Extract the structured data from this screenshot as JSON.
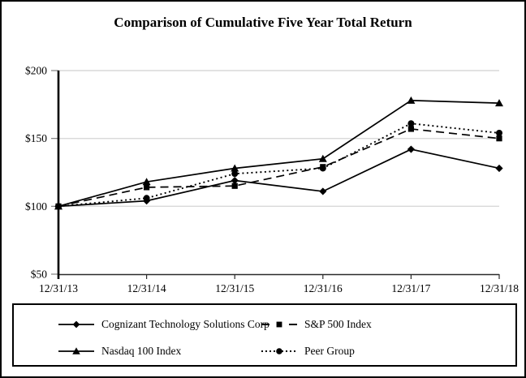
{
  "chart_data": {
    "type": "line",
    "title": "Comparison of Cumulative Five Year Total Return",
    "categories": [
      "12/31/13",
      "12/31/14",
      "12/31/15",
      "12/31/16",
      "12/31/17",
      "12/31/18"
    ],
    "series": [
      {
        "name": "Cognizant Technology Solutions Corp",
        "values": [
          100,
          104,
          119,
          111,
          142,
          128
        ],
        "line_style": "solid",
        "marker": "diamond"
      },
      {
        "name": "S&P 500 Index",
        "values": [
          100,
          114,
          115,
          129,
          157,
          150
        ],
        "line_style": "dashed",
        "marker": "square"
      },
      {
        "name": "Nasdaq 100 Index",
        "values": [
          100,
          118,
          128,
          135,
          178,
          176
        ],
        "line_style": "solid",
        "marker": "triangle"
      },
      {
        "name": "Peer Group",
        "values": [
          100,
          106,
          124,
          128,
          161,
          154
        ],
        "line_style": "dotted",
        "marker": "circle"
      }
    ],
    "xlabel": "",
    "ylabel": "",
    "ylim": [
      50,
      200
    ],
    "yticks": [
      50,
      100,
      150,
      200
    ],
    "ytick_labels": [
      "$50",
      "$100",
      "$150",
      "$200"
    ],
    "grid": true,
    "legend_position": "bottom-box",
    "colors": {
      "series": "#000000",
      "gridline": "#d9d9d9",
      "axis": "#000000",
      "x_axis": "#2b2b2b",
      "tick": "#808080",
      "background": "#ffffff",
      "border": "#000000"
    }
  }
}
